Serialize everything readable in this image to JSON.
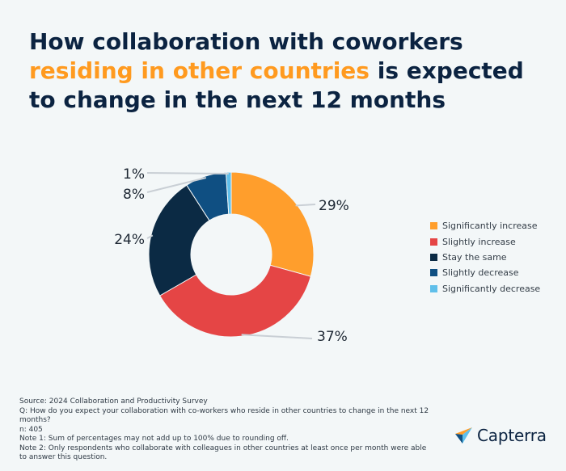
{
  "title": {
    "part1": "How collaboration with coworkers ",
    "highlight": "residing in other countries",
    "part2": " is expected to change in the next 12 months"
  },
  "colors": {
    "highlight": "#ff9a1f",
    "title": "#0b2341"
  },
  "chart_data": {
    "type": "pie",
    "donut": true,
    "categories": [
      "Significantly increase",
      "Slightly increase",
      "Stay the same",
      "Slightly decrease",
      "Significantly decrease"
    ],
    "values": [
      29,
      37,
      24,
      8,
      1
    ],
    "labels": [
      "29%",
      "37%",
      "24%",
      "8%",
      "1%"
    ],
    "colors": [
      "#ff9e2c",
      "#e54545",
      "#0b2a44",
      "#0f4f82",
      "#5fbfea"
    ],
    "legend_position": "right"
  },
  "footer": {
    "source": "Source: 2024 Collaboration and Productivity Survey",
    "question": "Q: How do you expect your collaboration with co-workers who reside in other countries to change in the next 12 months?",
    "n": "n: 405",
    "note1": "Note 1: Sum of percentages may not add up to 100% due to rounding off.",
    "note2": "Note 2: Only respondents who collaborate with colleagues in other countries at least once per month were able to answer this question."
  },
  "logo": {
    "text": "Capterra",
    "icon": "capterra-arrow-icon"
  }
}
